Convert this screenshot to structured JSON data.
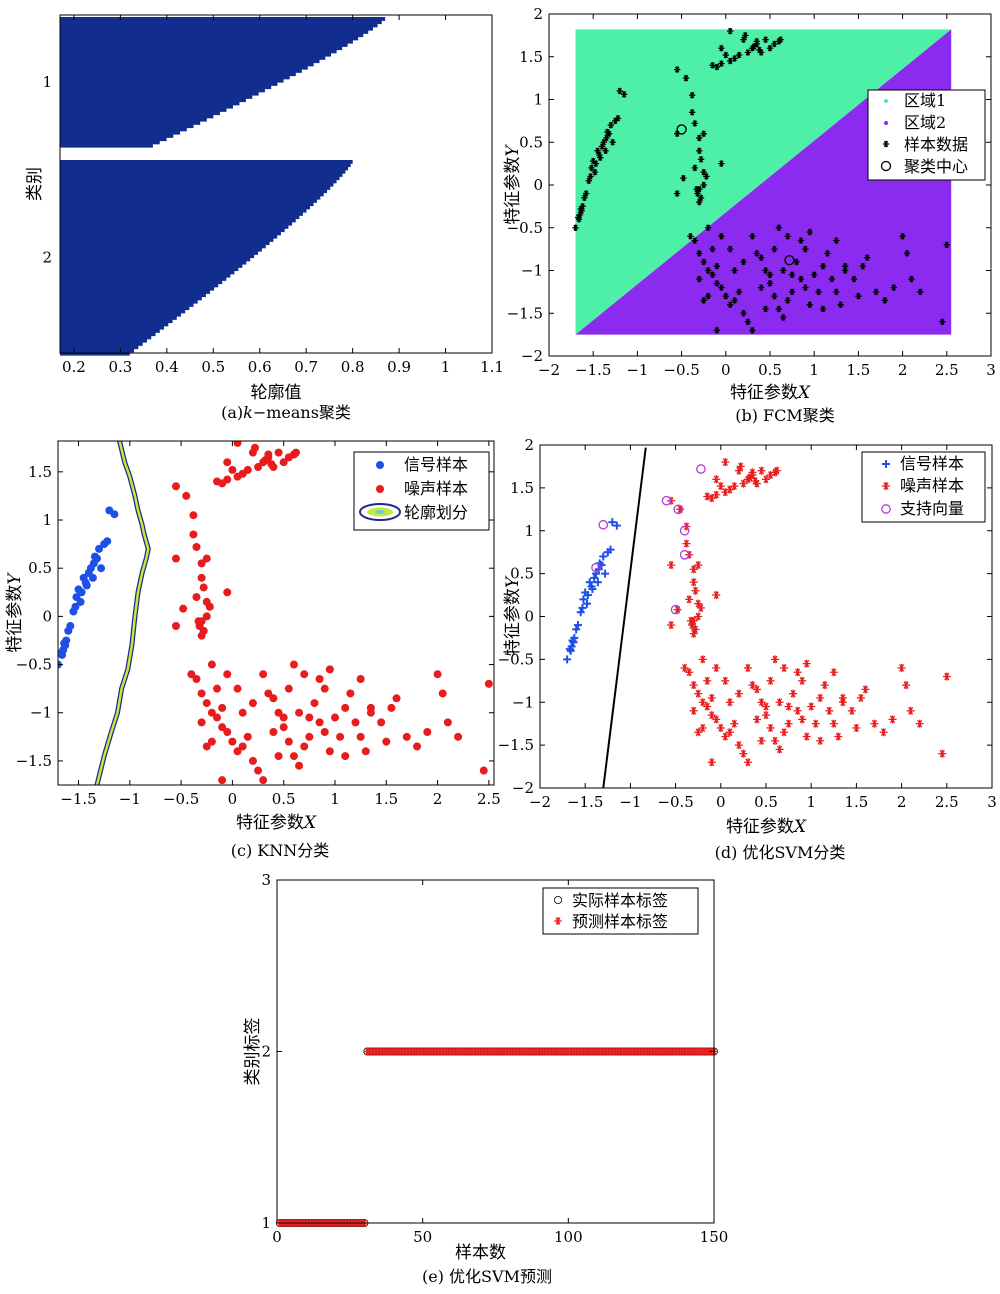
{
  "chart_data": [
    {
      "id": "a",
      "type": "bar",
      "caption_prefix": "(a)",
      "caption_italic": "k",
      "caption_rest": "−means聚类",
      "xlabel": "轮廓值",
      "ylabel": "类别",
      "xlim": [
        0.17,
        1.1
      ],
      "xticks": [
        "0.2",
        "0.3",
        "0.4",
        "0.5",
        "0.6",
        "0.7",
        "0.8",
        "0.9",
        "1",
        "1.1"
      ],
      "categories": [
        "1",
        "2"
      ],
      "bar_color": "#112e8f",
      "clusters": [
        {
          "name": "1",
          "count": 40,
          "start": 0.87,
          "end": 0.37
        },
        {
          "name": "2",
          "count": 60,
          "start": 0.8,
          "end": 0.32
        }
      ]
    },
    {
      "id": "b",
      "type": "scatter",
      "caption": "(b) FCM聚类",
      "xlabel": "特征参数",
      "xlabel_var": "X",
      "ylabel": "特征参数",
      "ylabel_var": "Y",
      "xlim": [
        -2,
        3
      ],
      "ylim": [
        -2,
        2
      ],
      "xticks": [
        "−2",
        "−1.5",
        "−1",
        "−0.5",
        "0",
        "0.5",
        "1",
        "1.5",
        "2",
        "2.5",
        "3"
      ],
      "yticks": [
        "−2",
        "−1.5",
        "−1",
        "−0.5",
        "0",
        "0.5",
        "1",
        "1.5",
        "2"
      ],
      "region_bounds": {
        "x": [
          -1.7,
          2.55
        ],
        "y": [
          -1.75,
          1.82
        ]
      },
      "region1_color": "#4df0a6",
      "region2_color": "#8b2bf0",
      "centers": [
        {
          "x": -0.5,
          "y": 0.65
        },
        {
          "x": 0.72,
          "y": -0.88
        }
      ],
      "legend": [
        "区域1",
        "区域2",
        "样本数据",
        "聚类中心"
      ]
    },
    {
      "id": "c",
      "type": "scatter",
      "caption": "(c) KNN分类",
      "xlabel": "特征参数",
      "xlabel_var": "X",
      "ylabel": "特征参数",
      "ylabel_var": "Y",
      "xlim": [
        -1.7,
        2.55
      ],
      "ylim": [
        -1.75,
        1.82
      ],
      "xticks": [
        "−1.5",
        "−1",
        "−0.5",
        "0",
        "0.5",
        "1",
        "1.5",
        "2",
        "2.5"
      ],
      "yticks": [
        "−1.5",
        "−1",
        "−0.5",
        "0",
        "0.5",
        "1",
        "1.5"
      ],
      "signal_color": "#1f4fe6",
      "noise_color": "#e81c1c",
      "boundary": [
        [
          -1.1,
          1.82
        ],
        [
          -1.05,
          1.6
        ],
        [
          -1.0,
          1.45
        ],
        [
          -0.95,
          1.25
        ],
        [
          -0.92,
          1.1
        ],
        [
          -0.88,
          0.95
        ],
        [
          -0.86,
          0.85
        ],
        [
          -0.82,
          0.7
        ],
        [
          -0.84,
          0.6
        ],
        [
          -0.88,
          0.45
        ],
        [
          -0.92,
          0.25
        ],
        [
          -0.95,
          0.0
        ],
        [
          -0.98,
          -0.3
        ],
        [
          -1.02,
          -0.55
        ],
        [
          -1.08,
          -0.75
        ],
        [
          -1.12,
          -1.0
        ],
        [
          -1.18,
          -1.2
        ],
        [
          -1.25,
          -1.45
        ],
        [
          -1.32,
          -1.75
        ]
      ],
      "legend": [
        "信号样本",
        "噪声样本",
        "轮廓划分"
      ]
    },
    {
      "id": "d",
      "type": "scatter",
      "caption": "(d) 优化SVM分类",
      "xlabel": "特征参数",
      "xlabel_var": "X",
      "ylabel": "特征参数",
      "ylabel_var": "Y",
      "xlim": [
        -2,
        3
      ],
      "ylim": [
        -2,
        2
      ],
      "xticks": [
        "−2",
        "−1.5",
        "−1",
        "−0.5",
        "0",
        "0.5",
        "1",
        "1.5",
        "2",
        "2.5",
        "3"
      ],
      "yticks": [
        "−2",
        "−1.5",
        "−1",
        "−0.5",
        "0",
        "0.5",
        "1",
        "1.5",
        "2"
      ],
      "signal_color": "#1f4fe6",
      "noise_color": "#e81c1c",
      "sv_color": "#b53ad6",
      "hyperplane": [
        [
          -1.3,
          -2.0
        ],
        [
          -0.83,
          1.97
        ]
      ],
      "support_vectors": [
        [
          -0.6,
          1.35
        ],
        [
          -0.47,
          1.25
        ],
        [
          -0.22,
          1.72
        ],
        [
          -0.4,
          1.0
        ],
        [
          -0.4,
          0.72
        ],
        [
          -0.5,
          0.08
        ],
        [
          -1.38,
          0.57
        ],
        [
          -1.3,
          1.07
        ]
      ],
      "legend": [
        "信号样本",
        "噪声样本",
        "支持向量"
      ]
    },
    {
      "id": "e",
      "type": "scatter",
      "caption": "(e) 优化SVM预测",
      "xlabel": "样本数",
      "ylabel": "类别标签",
      "xlim": [
        0,
        150
      ],
      "ylim": [
        1,
        3
      ],
      "xticks": [
        "0",
        "50",
        "100",
        "150"
      ],
      "yticks": [
        "1",
        "2",
        "3"
      ],
      "n_class1": 30,
      "n_total": 150,
      "marker_color": "#e81c1c",
      "legend": [
        "实际样本标签",
        "预测样本标签"
      ]
    }
  ],
  "samples": {
    "signal": [
      [
        -1.7,
        -0.5
      ],
      [
        -1.66,
        -0.4
      ],
      [
        -1.65,
        -0.35
      ],
      [
        -1.63,
        -0.3
      ],
      [
        -1.62,
        -0.25
      ],
      [
        -1.58,
        -0.1
      ],
      [
        -1.55,
        0.05
      ],
      [
        -1.52,
        0.2
      ],
      [
        -1.5,
        0.28
      ],
      [
        -1.47,
        0.25
      ],
      [
        -1.45,
        0.4
      ],
      [
        -1.43,
        0.35
      ],
      [
        -1.4,
        0.45
      ],
      [
        -1.38,
        0.5
      ],
      [
        -1.35,
        0.55
      ],
      [
        -1.32,
        0.6
      ],
      [
        -1.3,
        0.7
      ],
      [
        -1.25,
        0.75
      ],
      [
        -1.22,
        0.78
      ],
      [
        -1.2,
        1.1
      ],
      [
        -1.15,
        1.06
      ],
      [
        -1.67,
        -0.38
      ],
      [
        -1.6,
        -0.15
      ],
      [
        -1.48,
        0.15
      ],
      [
        -1.36,
        0.4
      ],
      [
        -1.28,
        0.5
      ],
      [
        -1.64,
        -0.28
      ],
      [
        -1.53,
        0.1
      ],
      [
        -1.42,
        0.32
      ],
      [
        -1.34,
        0.62
      ]
    ],
    "noise": [
      [
        0.05,
        1.8
      ],
      [
        0.2,
        1.7
      ],
      [
        0.22,
        1.75
      ],
      [
        0.3,
        1.6
      ],
      [
        0.35,
        1.65
      ],
      [
        0.4,
        1.55
      ],
      [
        0.45,
        1.7
      ],
      [
        0.5,
        1.6
      ],
      [
        0.55,
        1.65
      ],
      [
        0.6,
        1.68
      ],
      [
        0.62,
        1.7
      ],
      [
        -0.05,
        1.6
      ],
      [
        0.0,
        1.52
      ],
      [
        -0.15,
        1.4
      ],
      [
        -0.1,
        1.38
      ],
      [
        -0.05,
        1.42
      ],
      [
        0.05,
        1.45
      ],
      [
        0.1,
        1.48
      ],
      [
        0.25,
        1.55
      ],
      [
        0.38,
        1.58
      ],
      [
        -0.55,
        1.35
      ],
      [
        -0.45,
        1.25
      ],
      [
        -0.38,
        1.05
      ],
      [
        -0.35,
        0.72
      ],
      [
        -0.3,
        0.55
      ],
      [
        -0.25,
        0.6
      ],
      [
        -0.3,
        0.4
      ],
      [
        -0.28,
        0.3
      ],
      [
        -0.25,
        0.15
      ],
      [
        -0.22,
        0.1
      ],
      [
        -0.25,
        0.0
      ],
      [
        -0.3,
        -0.05
      ],
      [
        -0.28,
        -0.15
      ],
      [
        -0.32,
        -0.1
      ],
      [
        -0.48,
        0.08
      ],
      [
        -0.55,
        -0.1
      ],
      [
        -0.05,
        0.25
      ],
      [
        -0.4,
        -0.6
      ],
      [
        -0.35,
        -0.65
      ],
      [
        -0.3,
        -0.8
      ],
      [
        -0.25,
        -0.9
      ],
      [
        -0.2,
        -1.0
      ],
      [
        -0.15,
        -1.05
      ],
      [
        -0.1,
        -0.95
      ],
      [
        -0.05,
        -1.2
      ],
      [
        0.0,
        -1.3
      ],
      [
        0.05,
        -1.4
      ],
      [
        0.1,
        -1.35
      ],
      [
        0.15,
        -1.25
      ],
      [
        0.2,
        -1.5
      ],
      [
        -0.1,
        -1.7
      ],
      [
        0.3,
        -0.6
      ],
      [
        0.35,
        -0.8
      ],
      [
        0.4,
        -0.85
      ],
      [
        0.45,
        -1.0
      ],
      [
        0.5,
        -1.15
      ],
      [
        0.55,
        -1.3
      ],
      [
        0.6,
        -1.45
      ],
      [
        0.65,
        -1.55
      ],
      [
        0.7,
        -1.35
      ],
      [
        0.75,
        -1.05
      ],
      [
        0.8,
        -0.9
      ],
      [
        0.85,
        -1.1
      ],
      [
        0.9,
        -1.2
      ],
      [
        0.95,
        -1.4
      ],
      [
        1.0,
        -1.05
      ],
      [
        1.1,
        -0.95
      ],
      [
        1.2,
        -1.1
      ],
      [
        1.25,
        -1.25
      ],
      [
        1.3,
        -1.4
      ],
      [
        1.35,
        -0.95
      ],
      [
        1.5,
        -1.3
      ],
      [
        1.6,
        -0.85
      ],
      [
        1.7,
        -1.25
      ],
      [
        1.8,
        -1.35
      ],
      [
        1.9,
        -1.2
      ],
      [
        2.0,
        -0.6
      ],
      [
        2.1,
        -1.1
      ],
      [
        2.2,
        -1.25
      ],
      [
        2.45,
        -1.6
      ],
      [
        2.5,
        -0.7
      ],
      [
        0.6,
        -0.5
      ],
      [
        0.7,
        -0.6
      ],
      [
        0.95,
        -0.55
      ],
      [
        1.25,
        -0.65
      ],
      [
        -0.2,
        -0.5
      ],
      [
        0.05,
        -0.75
      ],
      [
        0.25,
        -1.6
      ],
      [
        -0.25,
        -1.35
      ],
      [
        0.55,
        -0.75
      ],
      [
        0.65,
        -1.0
      ],
      [
        1.05,
        -1.25
      ],
      [
        1.45,
        -1.1
      ],
      [
        1.15,
        -0.8
      ],
      [
        0.4,
        -1.2
      ],
      [
        -0.3,
        -1.1
      ],
      [
        -0.15,
        -0.75
      ],
      [
        -0.05,
        -0.6
      ],
      [
        0.85,
        -0.65
      ],
      [
        0.1,
        -1.0
      ],
      [
        0.3,
        -1.7
      ],
      [
        -0.35,
        0.2
      ],
      [
        -0.38,
        0.85
      ],
      [
        -0.33,
        -0.05
      ],
      [
        0.15,
        1.52
      ],
      [
        0.32,
        1.62
      ],
      [
        -0.3,
        -0.2
      ],
      [
        1.1,
        -1.45
      ],
      [
        0.75,
        -1.25
      ],
      [
        -0.55,
        0.6
      ],
      [
        1.35,
        -1.0
      ],
      [
        0.5,
        -1.05
      ],
      [
        -0.1,
        -1.15
      ],
      [
        0.2,
        -0.9
      ],
      [
        0.9,
        -0.75
      ],
      [
        1.55,
        -0.95
      ],
      [
        -0.2,
        -1.3
      ],
      [
        0.45,
        -1.45
      ],
      [
        2.05,
        -0.8
      ],
      [
        0.35,
        1.68
      ]
    ]
  }
}
